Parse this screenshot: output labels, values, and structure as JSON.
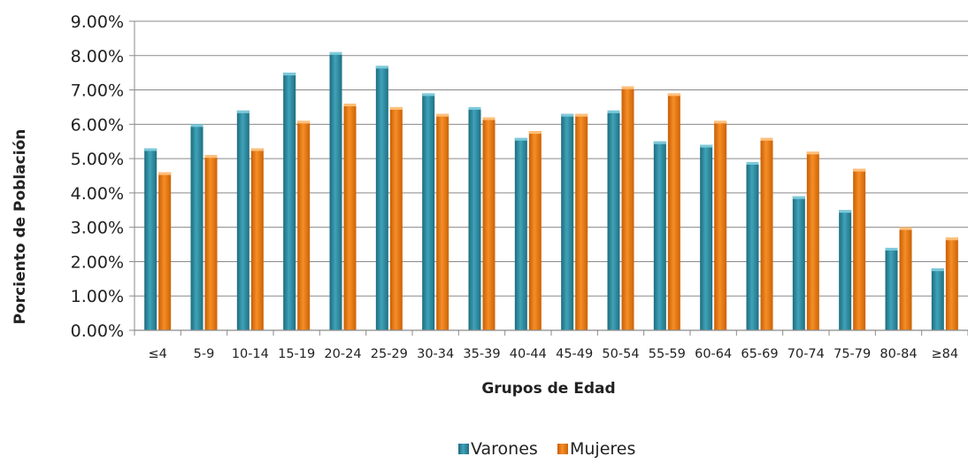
{
  "chart_data": {
    "type": "bar",
    "title": "",
    "xlabel": "Grupos de Edad",
    "ylabel": "Porciento de Población",
    "ylim": [
      0,
      9
    ],
    "y_tick_values": [
      0,
      1,
      2,
      3,
      4,
      5,
      6,
      7,
      8,
      9
    ],
    "y_tick_labels": [
      "0.00%",
      "1.00%",
      "2.00%",
      "3.00%",
      "4.00%",
      "5.00%",
      "6.00%",
      "7.00%",
      "8.00%",
      "9.00%"
    ],
    "grid": true,
    "legend_position": "bottom",
    "categories": [
      "≤4",
      "5-9",
      "10-14",
      "15-19",
      "20-24",
      "25-29",
      "30-34",
      "35-39",
      "40-44",
      "45-49",
      "50-54",
      "55-59",
      "60-64",
      "65-69",
      "70-74",
      "75-79",
      "80-84",
      "≥84"
    ],
    "series": [
      {
        "name": "Varones",
        "color": "#2f8da3",
        "values": [
          5.3,
          6.0,
          6.4,
          7.5,
          8.1,
          7.7,
          6.9,
          6.5,
          5.6,
          6.3,
          6.4,
          5.5,
          5.4,
          4.9,
          3.9,
          3.5,
          2.4,
          1.8
        ]
      },
      {
        "name": "Mujeres",
        "color": "#e8760c",
        "values": [
          4.6,
          5.1,
          5.3,
          6.1,
          6.6,
          6.5,
          6.3,
          6.2,
          5.8,
          6.3,
          7.1,
          6.9,
          6.1,
          5.6,
          5.2,
          4.7,
          3.0,
          2.7
        ]
      }
    ]
  }
}
